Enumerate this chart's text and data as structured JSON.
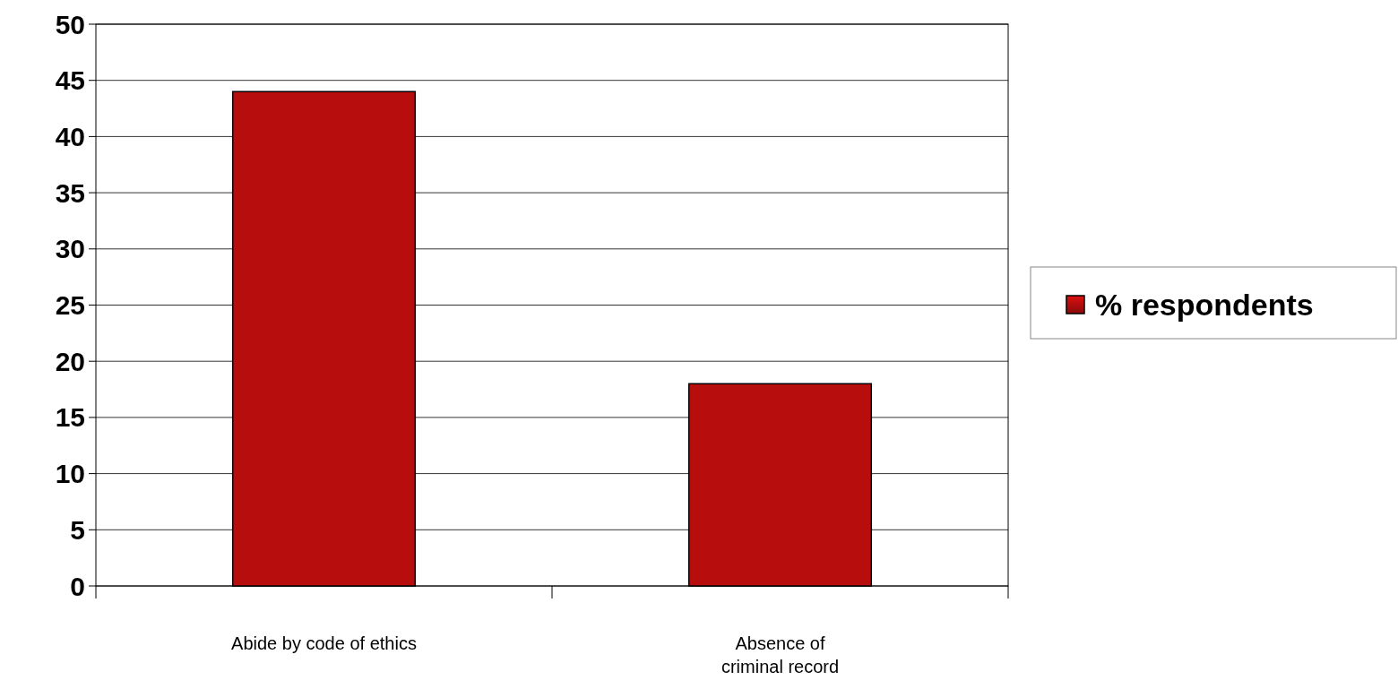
{
  "chart_data": {
    "type": "bar",
    "categories": [
      "Abide by code of ethics",
      "Absence of\ncriminal record"
    ],
    "series": [
      {
        "name": "% respondents",
        "color": "#b80d0d",
        "values": [
          44,
          18
        ]
      }
    ],
    "ylim": [
      0,
      50
    ],
    "yticks": [
      0,
      5,
      10,
      15,
      20,
      25,
      30,
      35,
      40,
      45,
      50
    ],
    "grid": "y",
    "legend": "right"
  }
}
